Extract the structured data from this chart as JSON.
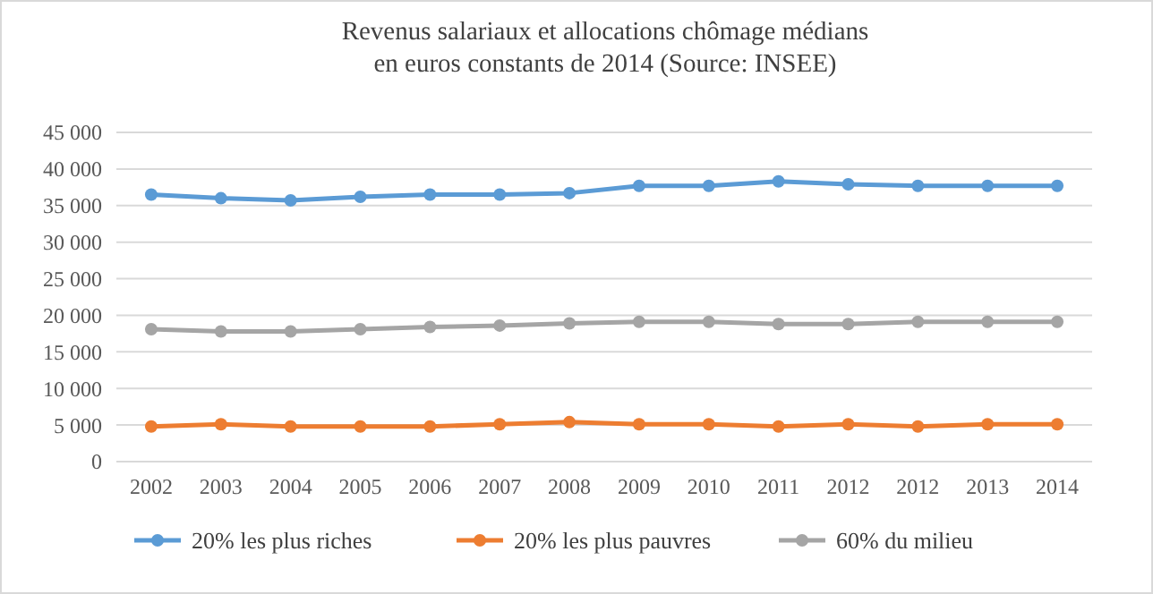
{
  "chart_data": {
    "type": "line",
    "title": "Revenus salariaux et allocations chômage médians\nen euros constants de 2014 (Source: INSEE)",
    "categories": [
      "2002",
      "2003",
      "2004",
      "2005",
      "2006",
      "2007",
      "2008",
      "2009",
      "2010",
      "2011",
      "2012",
      "2012",
      "2013",
      "2014"
    ],
    "series": [
      {
        "name": "20% les plus riches",
        "color": "#5b9bd5",
        "values": [
          36500,
          36000,
          35700,
          36200,
          36500,
          36500,
          36700,
          37700,
          37700,
          38300,
          37900,
          37700,
          37700,
          37700
        ]
      },
      {
        "name": "20% les plus pauvres",
        "color": "#ed7d31",
        "values": [
          4800,
          5100,
          4800,
          4800,
          4800,
          5100,
          5400,
          5100,
          5100,
          4800,
          5100,
          4800,
          5100,
          5100
        ]
      },
      {
        "name": "60% du milieu",
        "color": "#a5a5a5",
        "values": [
          18100,
          17800,
          17800,
          18100,
          18400,
          18600,
          18900,
          19100,
          19100,
          18800,
          18800,
          19100,
          19100,
          19100
        ]
      }
    ],
    "ylim": [
      0,
      45000
    ],
    "yticks": [
      0,
      {
        "value": 5000,
        "label": "5 000"
      },
      {
        "value": 10000,
        "label": "10 000"
      },
      {
        "value": 15000,
        "label": "15 000"
      },
      {
        "value": 20000,
        "label": "20 000"
      },
      {
        "value": 25000,
        "label": "25 000"
      },
      {
        "value": 30000,
        "label": "30 000"
      },
      {
        "value": 35000,
        "label": "35 000"
      },
      {
        "value": 40000,
        "label": "40 000"
      },
      {
        "value": 45000,
        "label": "45 000"
      }
    ],
    "grid": "y",
    "legend": "bottom",
    "marker": "circle",
    "line_style": "solid"
  }
}
